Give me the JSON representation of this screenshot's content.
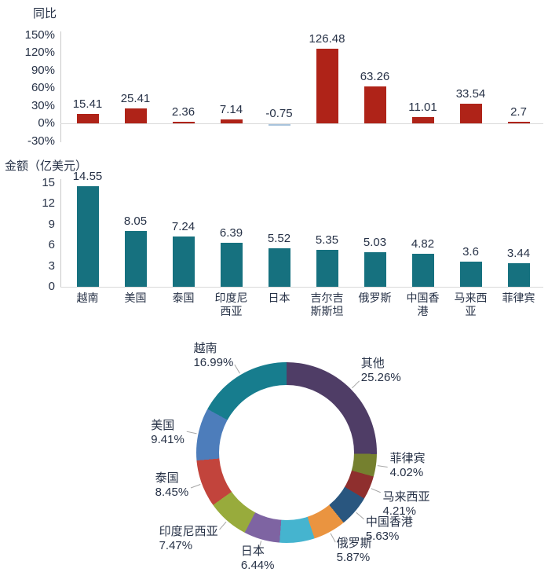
{
  "chart_data": [
    {
      "type": "bar",
      "title": "同比",
      "categories": [
        "越南",
        "美国",
        "泰国",
        "印度尼西亚",
        "日本",
        "吉尔吉斯斯坦",
        "俄罗斯",
        "中国香港",
        "马来西亚",
        "菲律宾"
      ],
      "values": [
        15.41,
        25.41,
        2.36,
        7.14,
        -0.75,
        126.48,
        63.26,
        11.01,
        33.54,
        2.7
      ],
      "value_labels": [
        "15.41",
        "25.41",
        "2.36",
        "7.14",
        "-0.75",
        "126.48",
        "63.26",
        "11.01",
        "33.54",
        "2.7"
      ],
      "ylim": [
        -30,
        150
      ],
      "ytick_values": [
        150,
        120,
        90,
        60,
        30,
        0,
        -30
      ],
      "ytick_labels": [
        "150%",
        "120%",
        "90%",
        "60%",
        "30%",
        "0%",
        "-30%"
      ],
      "bar_color": "#af2318",
      "negative_bar_color": "#a9c3dc",
      "grid": false,
      "show_category_labels": false
    },
    {
      "type": "bar",
      "title": "金额（亿美元）",
      "categories": [
        "越南",
        "美国",
        "泰国",
        "印度尼西亚",
        "日本",
        "吉尔吉斯斯坦",
        "俄罗斯",
        "中国香港",
        "马来西亚",
        "菲律宾"
      ],
      "values": [
        14.55,
        8.05,
        7.24,
        6.39,
        5.52,
        5.35,
        5.03,
        4.82,
        3.6,
        3.44
      ],
      "value_labels": [
        "14.55",
        "8.05",
        "7.24",
        "6.39",
        "5.52",
        "5.35",
        "5.03",
        "4.82",
        "3.6",
        "3.44"
      ],
      "ylim": [
        0,
        15
      ],
      "ytick_values": [
        15,
        12,
        9,
        6,
        3,
        0
      ],
      "ytick_labels": [
        "15",
        "12",
        "9",
        "6",
        "3",
        "0"
      ],
      "bar_color": "#16717f",
      "grid": false,
      "show_category_labels": true
    },
    {
      "type": "donut",
      "start": "top",
      "direction": "clockwise",
      "segments": [
        {
          "label": "其他",
          "pct_label": "25.26%",
          "value": 25.26,
          "color": "#4f3d66"
        },
        {
          "label": "菲律宾",
          "pct_label": "4.02%",
          "value": 4.02,
          "color": "#75802f"
        },
        {
          "label": "马来西亚",
          "pct_label": "4.21%",
          "value": 4.21,
          "color": "#8f2f2e"
        },
        {
          "label": "中国香港",
          "pct_label": "5.63%",
          "value": 5.63,
          "color": "#29567f"
        },
        {
          "label": "俄罗斯",
          "pct_label": "5.87%",
          "value": 5.87,
          "color": "#ea9440"
        },
        {
          "label": "",
          "pct_label": "",
          "value": 6.25,
          "color": "#45b4cf"
        },
        {
          "label": "日本",
          "pct_label": "6.44%",
          "value": 6.44,
          "color": "#7e64a2"
        },
        {
          "label": "印度尼西亚",
          "pct_label": "7.47%",
          "value": 7.47,
          "color": "#98ab3c"
        },
        {
          "label": "泰国",
          "pct_label": "8.45%",
          "value": 8.45,
          "color": "#c2443c"
        },
        {
          "label": "美国",
          "pct_label": "9.41%",
          "value": 9.41,
          "color": "#4d7dbb"
        },
        {
          "label": "越南",
          "pct_label": "16.99%",
          "value": 16.99,
          "color": "#177d8e"
        }
      ]
    }
  ]
}
